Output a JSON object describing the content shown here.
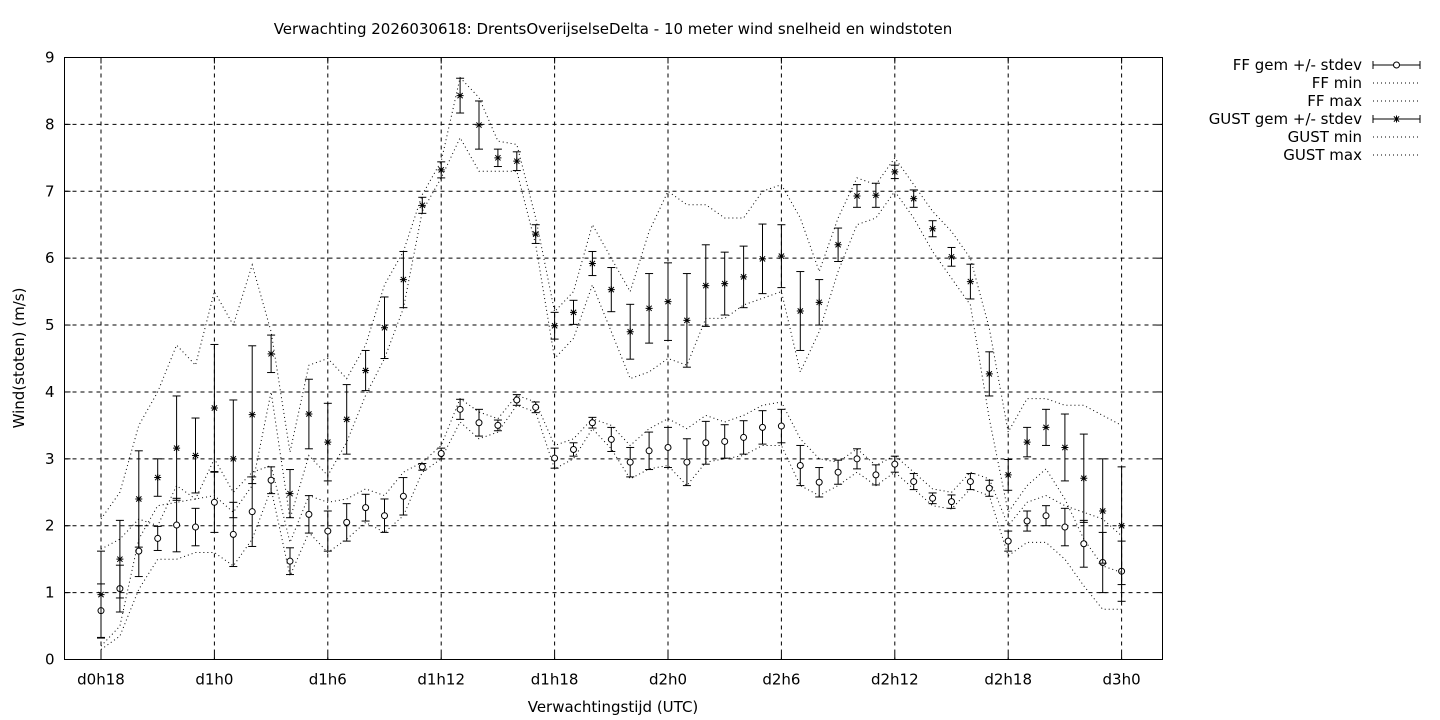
{
  "chart_data": {
    "type": "line",
    "title": "Verwachting 2026030618: DrentsOverijselseDelta - 10 meter wind snelheid en windstoten",
    "xlabel": "Verwachtingstijd (UTC)",
    "ylabel": "Wind(stoten) (m/s)",
    "xlim": [
      0,
      57
    ],
    "ylim": [
      0,
      9
    ],
    "x_ticks": [
      {
        "x": 0,
        "label": "d0h18"
      },
      {
        "x": 6,
        "label": "d1h0"
      },
      {
        "x": 12,
        "label": "d1h6"
      },
      {
        "x": 18,
        "label": "d1h12"
      },
      {
        "x": 24,
        "label": "d1h18"
      },
      {
        "x": 30,
        "label": "d2h0"
      },
      {
        "x": 36,
        "label": "d2h6"
      },
      {
        "x": 42,
        "label": "d2h12"
      },
      {
        "x": 48,
        "label": "d2h18"
      },
      {
        "x": 54,
        "label": "d3h0"
      }
    ],
    "y_ticks": [
      "0",
      "1",
      "2",
      "3",
      "4",
      "5",
      "6",
      "7",
      "8",
      "9"
    ],
    "grid": true,
    "legend_position": "outside-top-right",
    "x": [
      0,
      1,
      2,
      3,
      4,
      5,
      6,
      7,
      8,
      9,
      10,
      11,
      12,
      13,
      14,
      15,
      16,
      17,
      18,
      19,
      20,
      21,
      22,
      23,
      24,
      25,
      26,
      27,
      28,
      29,
      30,
      31,
      32,
      33,
      34,
      35,
      36,
      37,
      38,
      39,
      40,
      41,
      42,
      43,
      44,
      45,
      46,
      47,
      48,
      49,
      50,
      51,
      52,
      53,
      54
    ],
    "series": [
      {
        "name": "FF gem +/- stdev",
        "style": "errorbars-circle",
        "values": [
          0.73,
          1.06,
          1.62,
          1.81,
          2.01,
          1.98,
          2.35,
          1.87,
          2.21,
          2.68,
          1.47,
          2.17,
          1.92,
          2.05,
          2.27,
          2.15,
          2.44,
          2.88,
          3.08,
          3.74,
          3.54,
          3.5,
          3.88,
          3.77,
          3.01,
          3.14,
          3.54,
          3.29,
          2.95,
          3.12,
          3.17,
          2.95,
          3.24,
          3.26,
          3.32,
          3.47,
          3.49,
          2.9,
          2.65,
          2.8,
          3.0,
          2.76,
          2.92,
          2.66,
          2.41,
          2.36,
          2.66,
          2.56,
          1.77,
          2.07,
          2.15,
          1.98,
          1.73,
          1.45,
          1.32
        ],
        "stdev": [
          0.4,
          0.35,
          0.38,
          0.18,
          0.4,
          0.28,
          0.45,
          0.48,
          0.52,
          0.2,
          0.2,
          0.28,
          0.3,
          0.28,
          0.2,
          0.25,
          0.28,
          0.05,
          0.08,
          0.15,
          0.2,
          0.08,
          0.08,
          0.08,
          0.15,
          0.1,
          0.08,
          0.18,
          0.22,
          0.28,
          0.3,
          0.35,
          0.32,
          0.25,
          0.25,
          0.25,
          0.25,
          0.3,
          0.22,
          0.18,
          0.15,
          0.15,
          0.12,
          0.12,
          0.08,
          0.1,
          0.12,
          0.12,
          0.15,
          0.15,
          0.15,
          0.28,
          0.35,
          0.45,
          0.45
        ]
      },
      {
        "name": "FF min",
        "style": "dotted",
        "values": [
          0.15,
          0.35,
          1.05,
          1.5,
          1.5,
          1.6,
          1.6,
          1.4,
          1.8,
          2.55,
          1.25,
          1.9,
          1.6,
          1.8,
          2.05,
          1.9,
          2.15,
          2.8,
          3.0,
          3.55,
          3.3,
          3.4,
          3.8,
          3.7,
          2.85,
          3.0,
          3.45,
          3.15,
          2.7,
          2.85,
          2.9,
          2.6,
          2.95,
          3.0,
          3.05,
          3.2,
          3.2,
          2.6,
          2.45,
          2.6,
          2.8,
          2.6,
          2.8,
          2.55,
          2.3,
          2.25,
          2.55,
          2.45,
          1.55,
          1.75,
          1.75,
          1.5,
          1.1,
          0.75,
          0.75
        ]
      },
      {
        "name": "FF max",
        "style": "dotted",
        "values": [
          1.65,
          1.8,
          2.1,
          2.0,
          2.6,
          2.4,
          3.0,
          2.5,
          2.8,
          2.9,
          1.75,
          2.45,
          2.35,
          2.4,
          2.55,
          2.45,
          2.8,
          2.95,
          3.2,
          3.9,
          3.7,
          3.6,
          3.95,
          3.85,
          3.2,
          3.3,
          3.6,
          3.5,
          3.2,
          3.45,
          3.6,
          3.45,
          3.65,
          3.55,
          3.65,
          3.8,
          3.85,
          3.3,
          3.0,
          2.95,
          3.15,
          2.9,
          3.05,
          2.8,
          2.55,
          2.5,
          2.8,
          2.7,
          2.0,
          2.35,
          2.45,
          2.3,
          2.2,
          2.1,
          1.85
        ]
      },
      {
        "name": "GUST gem +/- stdev",
        "style": "errorbars-star",
        "values": [
          0.97,
          1.5,
          2.4,
          2.72,
          3.16,
          3.05,
          3.76,
          3.0,
          3.66,
          4.57,
          2.48,
          3.67,
          3.25,
          3.59,
          4.32,
          4.96,
          5.68,
          6.79,
          7.32,
          8.43,
          7.99,
          7.5,
          7.45,
          6.36,
          4.99,
          5.19,
          5.92,
          5.53,
          4.9,
          5.25,
          5.35,
          5.07,
          5.59,
          5.62,
          5.72,
          5.99,
          6.03,
          5.21,
          5.34,
          6.2,
          6.93,
          6.94,
          7.29,
          6.89,
          6.44,
          6.02,
          5.65,
          4.27,
          2.76,
          3.25,
          3.47,
          3.17,
          2.71,
          2.22,
          2.0
        ],
        "stdev": [
          0.65,
          0.58,
          0.72,
          0.28,
          0.78,
          0.56,
          0.95,
          0.88,
          1.03,
          0.28,
          0.36,
          0.52,
          0.58,
          0.52,
          0.3,
          0.46,
          0.42,
          0.12,
          0.12,
          0.26,
          0.36,
          0.13,
          0.14,
          0.14,
          0.2,
          0.18,
          0.18,
          0.33,
          0.41,
          0.52,
          0.58,
          0.7,
          0.61,
          0.47,
          0.46,
          0.52,
          0.47,
          0.59,
          0.34,
          0.25,
          0.17,
          0.18,
          0.1,
          0.13,
          0.12,
          0.14,
          0.26,
          0.33,
          0.23,
          0.22,
          0.27,
          0.5,
          0.66,
          0.78,
          0.88
        ]
      },
      {
        "name": "GUST min",
        "style": "dotted",
        "values": [
          0.2,
          0.5,
          1.8,
          2.3,
          2.35,
          2.4,
          2.45,
          2.2,
          2.6,
          4.0,
          2.1,
          3.05,
          2.75,
          3.25,
          3.95,
          4.5,
          5.25,
          6.7,
          7.2,
          7.8,
          7.3,
          7.3,
          7.3,
          6.2,
          4.5,
          4.8,
          5.6,
          4.9,
          4.2,
          4.3,
          4.5,
          4.4,
          5.1,
          5.1,
          5.3,
          5.4,
          5.5,
          4.3,
          4.9,
          5.8,
          6.5,
          6.6,
          7.0,
          6.6,
          6.1,
          5.7,
          5.3,
          3.6,
          2.2,
          2.6,
          2.85,
          2.4,
          1.8,
          1.4,
          1.3
        ]
      },
      {
        "name": "GUST max",
        "style": "dotted",
        "values": [
          2.1,
          2.5,
          3.5,
          4.0,
          4.7,
          4.4,
          5.5,
          5.0,
          5.9,
          4.9,
          3.1,
          4.4,
          4.5,
          4.2,
          4.7,
          5.6,
          6.1,
          6.95,
          7.45,
          8.7,
          8.4,
          7.75,
          7.7,
          6.6,
          5.2,
          5.5,
          6.5,
          6.0,
          5.5,
          6.4,
          7.0,
          6.8,
          6.8,
          6.6,
          6.6,
          7.0,
          7.1,
          6.6,
          5.8,
          6.6,
          7.2,
          7.1,
          7.5,
          7.1,
          6.7,
          6.4,
          6.0,
          4.95,
          3.4,
          3.9,
          3.9,
          3.8,
          3.8,
          3.65,
          3.5
        ]
      }
    ]
  }
}
